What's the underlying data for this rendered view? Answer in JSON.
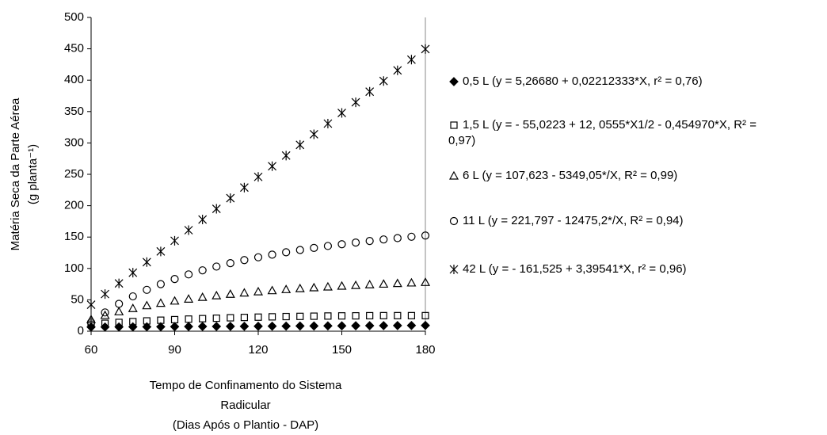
{
  "chart_data": {
    "type": "scatter",
    "ylabel": [
      "Matéria Seca da Parte Aérea",
      "(g planta⁻¹)"
    ],
    "xlabel": [
      "Tempo de Confinamento do Sistema",
      "Radicular",
      "(Dias Após o Plantio - DAP)"
    ],
    "xlim": [
      60,
      180
    ],
    "xticks": [
      60,
      90,
      120,
      150,
      180
    ],
    "ylim": [
      0,
      500
    ],
    "yticks": [
      0,
      50,
      100,
      150,
      200,
      250,
      300,
      350,
      400,
      450,
      500
    ],
    "x": [
      60,
      65,
      70,
      75,
      80,
      85,
      90,
      95,
      100,
      105,
      110,
      115,
      120,
      125,
      130,
      135,
      140,
      145,
      150,
      155,
      160,
      165,
      170,
      175,
      180
    ],
    "series": [
      {
        "name": "0,5 L (y = 5,26680 + 0,02212333*X, r² = 0,76)",
        "color": "#000000",
        "marker": "diamond",
        "values": [
          6.6,
          6.7,
          6.8,
          6.9,
          7.0,
          7.1,
          7.3,
          7.4,
          7.5,
          7.6,
          7.7,
          7.8,
          7.9,
          8.0,
          8.1,
          8.3,
          8.4,
          8.5,
          8.6,
          8.7,
          8.8,
          8.9,
          9.0,
          9.1,
          9.2
        ]
      },
      {
        "name": "1,5 L (y = - 55,0223 + 12, 0555*X1/2 -  0,454970*X, R² = 0,97)",
        "color": "#000000",
        "marker": "square",
        "values": [
          11.1,
          12.6,
          14.0,
          15.3,
          16.4,
          17.5,
          18.4,
          19.3,
          20.0,
          20.7,
          21.4,
          21.9,
          22.4,
          22.9,
          23.3,
          23.6,
          23.9,
          24.2,
          24.4,
          24.5,
          24.7,
          24.8,
          24.8,
          24.8,
          24.8
        ]
      },
      {
        "name": "6 L (y = 107,623 - 5349,05*/X, R² = 0,99)",
        "color": "#000000",
        "marker": "triangle",
        "values": [
          18.5,
          25.3,
          31.2,
          36.3,
          40.8,
          44.7,
          48.2,
          51.3,
          54.1,
          56.7,
          59.0,
          61.1,
          63.0,
          64.8,
          66.5,
          68.0,
          69.4,
          70.7,
          72.0,
          73.1,
          74.2,
          75.2,
          76.2,
          77.1,
          77.9
        ]
      },
      {
        "name": "11 L (y = 221,797 - 12475,2*/X, R² = 0,94)",
        "color": "#000000",
        "marker": "circle",
        "values": [
          13.9,
          29.9,
          43.6,
          55.5,
          65.9,
          75.0,
          83.2,
          90.5,
          97.0,
          103.0,
          108.4,
          113.3,
          117.8,
          122.0,
          125.8,
          129.4,
          132.7,
          135.8,
          138.6,
          141.3,
          143.8,
          146.2,
          148.4,
          150.5,
          152.5
        ]
      },
      {
        "name": "42 L (y = - 161,525 + 3,39541*X, r² = 0,96)",
        "color": "#000000",
        "marker": "asterisk",
        "values": [
          42.2,
          59.2,
          76.2,
          93.2,
          110.1,
          127.1,
          144.1,
          161.0,
          178.0,
          195.0,
          212.0,
          228.9,
          245.9,
          262.9,
          279.9,
          296.9,
          313.8,
          330.8,
          347.8,
          364.8,
          381.7,
          398.7,
          415.7,
          432.7,
          449.6
        ]
      }
    ]
  }
}
